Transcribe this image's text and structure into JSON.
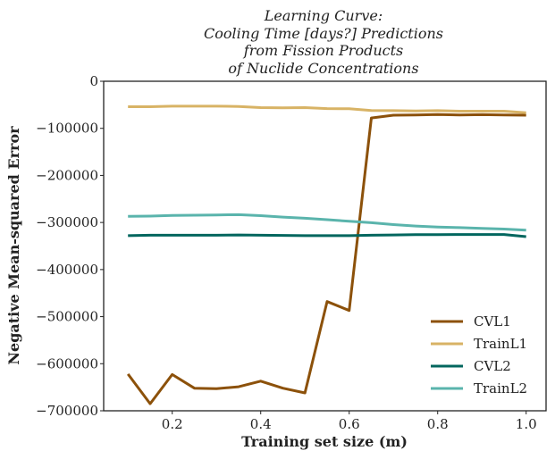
{
  "chart_data": {
    "type": "line",
    "title_lines": [
      "Learning Curve:",
      "Cooling Time [days?] Predictions",
      "from Fission Products",
      "of Nuclide Concentrations"
    ],
    "xlabel": "Training set size (m)",
    "ylabel": "Negative Mean-squared Error",
    "xlim": [
      0.045,
      1.045
    ],
    "ylim": [
      -700000,
      0
    ],
    "xticks": [
      0.2,
      0.4,
      0.6,
      0.8,
      1.0
    ],
    "xtick_labels": [
      "0.2",
      "0.4",
      "0.6",
      "0.8",
      "1.0"
    ],
    "yticks": [
      0,
      -100000,
      -200000,
      -300000,
      -400000,
      -500000,
      -600000,
      -700000
    ],
    "ytick_labels": [
      "0",
      "−100000",
      "−200000",
      "−300000",
      "−400000",
      "−500000",
      "−600000",
      "−700000"
    ],
    "x": [
      0.1,
      0.15,
      0.2,
      0.25,
      0.3,
      0.35,
      0.4,
      0.45,
      0.5,
      0.55,
      0.6,
      0.65,
      0.7,
      0.75,
      0.8,
      0.85,
      0.9,
      0.95,
      1.0
    ],
    "series": [
      {
        "name": "CVL1",
        "color": "#8c510a",
        "values": [
          -622000,
          -685000,
          -623000,
          -652000,
          -653000,
          -649000,
          -637000,
          -652000,
          -662000,
          -468000,
          -487000,
          -78000,
          -72000,
          -71500,
          -70500,
          -71500,
          -71000,
          -71500,
          -72000
        ]
      },
      {
        "name": "TrainL1",
        "color": "#d8b365",
        "values": [
          -54000,
          -54000,
          -53000,
          -53000,
          -53000,
          -53500,
          -56000,
          -56500,
          -56000,
          -58000,
          -58500,
          -62000,
          -62500,
          -63000,
          -62500,
          -63500,
          -63500,
          -63500,
          -67000
        ]
      },
      {
        "name": "CVL2",
        "color": "#01665e",
        "values": [
          -328000,
          -327000,
          -327000,
          -327000,
          -327000,
          -326500,
          -327000,
          -327500,
          -328000,
          -328000,
          -328000,
          -327000,
          -326500,
          -326000,
          -326000,
          -325500,
          -325500,
          -325500,
          -330000
        ]
      },
      {
        "name": "TrainL2",
        "color": "#5ab4ac",
        "values": [
          -287000,
          -286500,
          -285000,
          -284500,
          -284000,
          -283500,
          -285500,
          -288500,
          -291000,
          -294000,
          -297500,
          -300500,
          -304500,
          -307500,
          -309500,
          -311000,
          -312500,
          -314000,
          -316500
        ]
      }
    ],
    "legend_position": "lower-right",
    "grid": false
  }
}
